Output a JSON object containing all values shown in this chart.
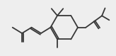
{
  "bg_color": "#eeeeee",
  "line_color": "#383838",
  "lw": 1.3,
  "figsize": [
    1.64,
    0.79
  ],
  "dpi": 100,
  "xlim": [
    0,
    10
  ],
  "ylim": [
    0,
    5
  ]
}
